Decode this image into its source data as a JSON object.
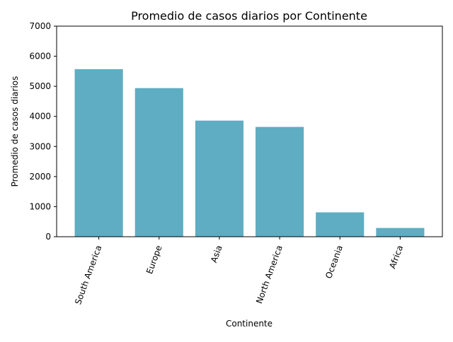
{
  "chart_data": {
    "type": "bar",
    "title": "Promedio de casos diarios por Continente",
    "xlabel": "Continente",
    "ylabel": "Promedio de casos diarios",
    "categories": [
      "South America",
      "Europe",
      "Asia",
      "North America",
      "Oceania",
      "Africa"
    ],
    "values": [
      5570,
      4940,
      3860,
      3650,
      810,
      290
    ],
    "ylim": [
      0,
      7000
    ],
    "yticks": [
      "0",
      "1000",
      "2000",
      "3000",
      "4000",
      "5000",
      "6000",
      "7000"
    ],
    "bar_color": "#5eadc2",
    "grid": false,
    "legend": false
  }
}
